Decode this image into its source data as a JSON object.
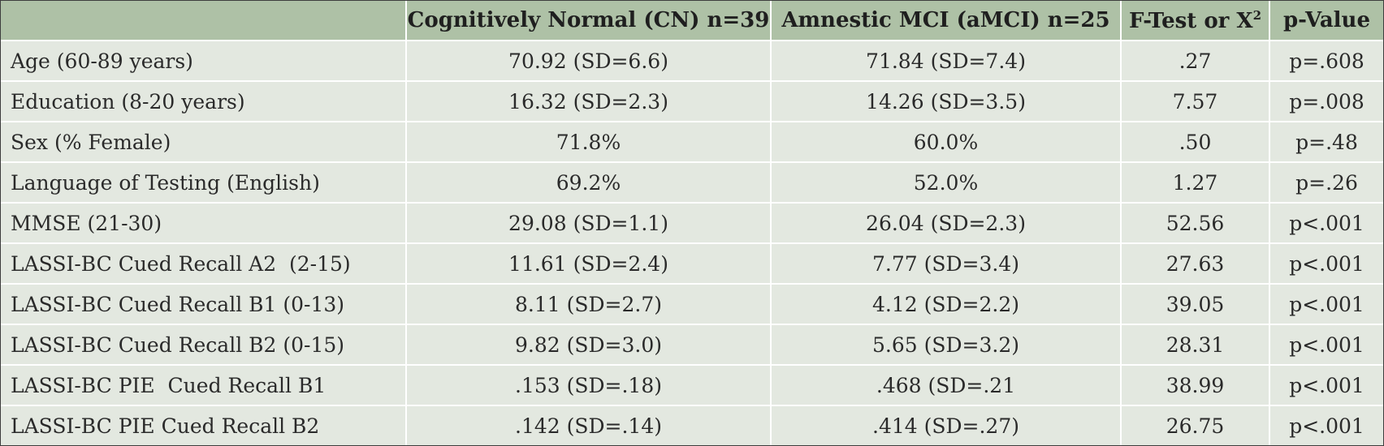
{
  "table": {
    "headers": {
      "col0": "",
      "col1": "Cognitively Normal (CN) n=39",
      "col2": "Amnestic MCI (aMCI) n=25",
      "col3_main": "F-Test or X",
      "col3_sup": "2",
      "col4": "p-Value"
    },
    "rows": [
      {
        "label": "Age (60-89 years)",
        "cn": "70.92 (SD=6.6)",
        "amci": "71.84 (SD=7.4)",
        "f": ".27",
        "p": "p=.608"
      },
      {
        "label": "Education (8-20 years)",
        "cn": "16.32 (SD=2.3)",
        "amci": "14.26 (SD=3.5)",
        "f": "7.57",
        "p": "p=.008"
      },
      {
        "label": "Sex (% Female)",
        "cn": "71.8%",
        "amci": "60.0%",
        "f": ".50",
        "p": "p=.48"
      },
      {
        "label": "Language of Testing (English)",
        "cn": "69.2%",
        "amci": "52.0%",
        "f": "1.27",
        "p": "p=.26"
      },
      {
        "label": "MMSE (21-30)",
        "cn": "29.08 (SD=1.1)",
        "amci": "26.04 (SD=2.3)",
        "f": "52.56",
        "p": "p<.001"
      },
      {
        "label": "LASSI-BC Cued Recall A2  (2-15)",
        "cn": "11.61 (SD=2.4)",
        "amci": "7.77 (SD=3.4)",
        "f": "27.63",
        "p": "p<.001"
      },
      {
        "label": "LASSI-BC Cued Recall B1 (0-13)",
        "cn": "8.11 (SD=2.7)",
        "amci": "4.12 (SD=2.2)",
        "f": "39.05",
        "p": "p<.001"
      },
      {
        "label": "LASSI-BC Cued Recall B2 (0-15)",
        "cn": "9.82 (SD=3.0)",
        "amci": "5.65 (SD=3.2)",
        "f": "28.31",
        "p": "p<.001"
      },
      {
        "label": "LASSI-BC PIE  Cued Recall B1",
        "cn": ".153 (SD=.18)",
        "amci": ".468 (SD=.21",
        "f": "38.99",
        "p": "p<.001"
      },
      {
        "label": "LASSI-BC PIE Cued Recall B2",
        "cn": ".142 (SD=.14)",
        "amci": ".414 (SD=.27)",
        "f": "26.75",
        "p": "p<.001"
      }
    ]
  },
  "colors": {
    "header_bg": "#aec1a6",
    "body_bg": "#e3e8e0",
    "grid_lines": "#ffffff",
    "outer_border": "#3d3d3d"
  }
}
